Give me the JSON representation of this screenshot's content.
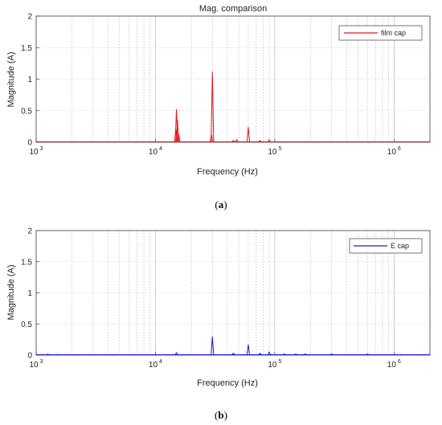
{
  "chart_data": [
    {
      "type": "line",
      "title": "Mag. comparison",
      "xlabel": "Frequency (Hz)",
      "ylabel": "Magnitude (A)",
      "xscale": "log",
      "xlim": [
        1000,
        2000000
      ],
      "ylim": [
        0,
        2
      ],
      "yticks": [
        "0",
        "0.5",
        "1",
        "1.5",
        "2"
      ],
      "xticks": [
        {
          "value": 1000,
          "base": "10",
          "exp": "3"
        },
        {
          "value": 10000,
          "base": "10",
          "exp": "4"
        },
        {
          "value": 100000,
          "base": "10",
          "exp": "5"
        },
        {
          "value": 1000000,
          "base": "10",
          "exp": "6"
        }
      ],
      "grid": true,
      "legend": "top-right",
      "series": [
        {
          "name": "film cap",
          "color": "#e8141b",
          "peaks": [
            {
              "x": 15000,
              "y": 0.52
            },
            {
              "x": 15300,
              "y": 0.35
            },
            {
              "x": 14800,
              "y": 0.2
            },
            {
              "x": 15700,
              "y": 0.12
            },
            {
              "x": 30000,
              "y": 1.12
            },
            {
              "x": 29500,
              "y": 0.12
            },
            {
              "x": 45000,
              "y": 0.03
            },
            {
              "x": 48000,
              "y": 0.04
            },
            {
              "x": 60000,
              "y": 0.24
            },
            {
              "x": 75000,
              "y": 0.03
            },
            {
              "x": 90000,
              "y": 0.04
            }
          ]
        }
      ],
      "caption": "a"
    },
    {
      "type": "line",
      "title": "",
      "xlabel": "Frequency (Hz)",
      "ylabel": "Magnitude (A)",
      "xscale": "log",
      "xlim": [
        1000,
        2000000
      ],
      "ylim": [
        0,
        2
      ],
      "yticks": [
        "0",
        "0.5",
        "1",
        "1.5",
        "2"
      ],
      "xticks": [
        {
          "value": 1000,
          "base": "10",
          "exp": "3"
        },
        {
          "value": 10000,
          "base": "10",
          "exp": "4"
        },
        {
          "value": 100000,
          "base": "10",
          "exp": "5"
        },
        {
          "value": 1000000,
          "base": "10",
          "exp": "6"
        }
      ],
      "grid": true,
      "legend": "top-right",
      "series": [
        {
          "name": "E cap",
          "color": "#1a1adb",
          "peaks": [
            {
              "x": 1250,
              "y": 0.015
            },
            {
              "x": 1500,
              "y": 0.01
            },
            {
              "x": 15000,
              "y": 0.04
            },
            {
              "x": 30000,
              "y": 0.3
            },
            {
              "x": 45000,
              "y": 0.03
            },
            {
              "x": 60000,
              "y": 0.17
            },
            {
              "x": 75000,
              "y": 0.03
            },
            {
              "x": 90000,
              "y": 0.05
            },
            {
              "x": 120000,
              "y": 0.02
            },
            {
              "x": 150000,
              "y": 0.02
            },
            {
              "x": 180000,
              "y": 0.02
            },
            {
              "x": 300000,
              "y": 0.02
            },
            {
              "x": 600000,
              "y": 0.02
            }
          ]
        }
      ],
      "caption": "b"
    }
  ]
}
